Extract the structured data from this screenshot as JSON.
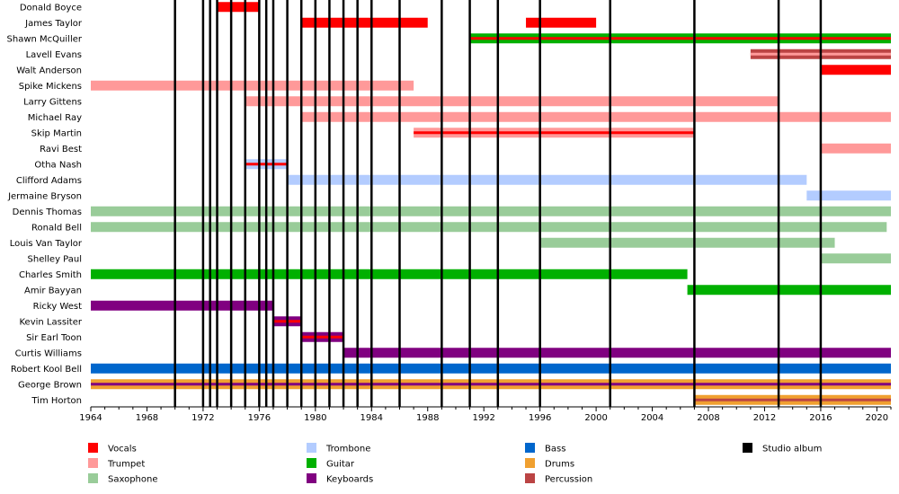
{
  "chart_data": {
    "type": "timeline",
    "title": "",
    "xlabel": "",
    "ylabel": "",
    "x_range": [
      1964,
      2021
    ],
    "x_ticks": [
      1964,
      1968,
      1972,
      1976,
      1980,
      1984,
      1988,
      1992,
      1996,
      2000,
      2004,
      2008,
      2012,
      2016,
      2020
    ],
    "albums": [
      1970,
      1972,
      1972.5,
      1973,
      1974,
      1975,
      1976,
      1976.5,
      1977,
      1978,
      1979,
      1980,
      1981,
      1982,
      1983,
      1984,
      1986,
      1989,
      1991,
      1993,
      1996,
      2001,
      2007,
      2013,
      2016
    ],
    "roles": {
      "vocals": {
        "label": "Vocals",
        "color": "#ff0000"
      },
      "trumpet": {
        "label": "Trumpet",
        "color": "#ff9999"
      },
      "saxophone": {
        "label": "Saxophone",
        "color": "#99cc99"
      },
      "trombone": {
        "label": "Trombone",
        "color": "#b3ccff"
      },
      "guitar": {
        "label": "Guitar",
        "color": "#00b000"
      },
      "keyboards": {
        "label": "Keyboards",
        "color": "#800080"
      },
      "bass": {
        "label": "Bass",
        "color": "#0066cc"
      },
      "drums": {
        "label": "Drums",
        "color": "#f0a030"
      },
      "percussion": {
        "label": "Percussion",
        "color": "#bb4444"
      },
      "album": {
        "label": "Studio album",
        "color": "#000000"
      }
    },
    "legend": [
      [
        "vocals",
        "trumpet",
        "saxophone"
      ],
      [
        "trombone",
        "guitar",
        "keyboards"
      ],
      [
        "bass",
        "drums",
        "percussion"
      ],
      [
        "album"
      ]
    ],
    "members": [
      {
        "name": "Donald Boyce",
        "bars": [
          {
            "role": "vocals",
            "start": 1973,
            "end": 1976
          }
        ]
      },
      {
        "name": "James Taylor",
        "bars": [
          {
            "role": "vocals",
            "start": 1979,
            "end": 1988
          },
          {
            "role": "vocals",
            "start": 1995,
            "end": 2000
          }
        ]
      },
      {
        "name": "Shawn McQuiller",
        "bars": [
          {
            "role": "guitar",
            "start": 1991,
            "end": 2021,
            "inner": "vocals"
          }
        ]
      },
      {
        "name": "Lavell Evans",
        "bars": [
          {
            "role": "percussion",
            "start": 2011,
            "end": 2021,
            "inner": "trumpet"
          }
        ]
      },
      {
        "name": "Walt Anderson",
        "bars": [
          {
            "role": "vocals",
            "start": 2016,
            "end": 2021
          }
        ]
      },
      {
        "name": "Spike Mickens",
        "bars": [
          {
            "role": "trumpet",
            "start": 1964,
            "end": 1987
          }
        ]
      },
      {
        "name": "Larry Gittens",
        "bars": [
          {
            "role": "trumpet",
            "start": 1975,
            "end": 2013
          }
        ]
      },
      {
        "name": "Michael Ray",
        "bars": [
          {
            "role": "trumpet",
            "start": 1979,
            "end": 2021
          }
        ]
      },
      {
        "name": "Skip Martin",
        "bars": [
          {
            "role": "trumpet",
            "start": 1987,
            "end": 2007,
            "inner": "vocals"
          }
        ]
      },
      {
        "name": "Ravi Best",
        "bars": [
          {
            "role": "trumpet",
            "start": 2016,
            "end": 2021
          }
        ]
      },
      {
        "name": "Otha Nash",
        "bars": [
          {
            "role": "trombone",
            "start": 1975,
            "end": 1978,
            "inner": "vocals"
          }
        ]
      },
      {
        "name": "Clifford Adams",
        "bars": [
          {
            "role": "trombone",
            "start": 1978,
            "end": 2015
          }
        ]
      },
      {
        "name": "Jermaine Bryson",
        "bars": [
          {
            "role": "trombone",
            "start": 2015,
            "end": 2021
          }
        ]
      },
      {
        "name": "Dennis Thomas",
        "bars": [
          {
            "role": "saxophone",
            "start": 1964,
            "end": 2021
          }
        ]
      },
      {
        "name": "Ronald Bell",
        "bars": [
          {
            "role": "saxophone",
            "start": 1964,
            "end": 2020.7
          }
        ]
      },
      {
        "name": "Louis Van Taylor",
        "bars": [
          {
            "role": "saxophone",
            "start": 1996,
            "end": 2017
          }
        ]
      },
      {
        "name": "Shelley Paul",
        "bars": [
          {
            "role": "saxophone",
            "start": 2016,
            "end": 2021
          }
        ]
      },
      {
        "name": "Charles Smith",
        "bars": [
          {
            "role": "guitar",
            "start": 1964,
            "end": 2006.5
          }
        ]
      },
      {
        "name": "Amir Bayyan",
        "bars": [
          {
            "role": "guitar",
            "start": 2006.5,
            "end": 2021
          }
        ]
      },
      {
        "name": "Ricky West",
        "bars": [
          {
            "role": "keyboards",
            "start": 1964,
            "end": 1977
          }
        ]
      },
      {
        "name": "Kevin Lassiter",
        "bars": [
          {
            "role": "keyboards",
            "start": 1977,
            "end": 1979,
            "inner": "vocals"
          }
        ]
      },
      {
        "name": "Sir Earl Toon",
        "bars": [
          {
            "role": "keyboards",
            "start": 1979,
            "end": 1982,
            "inner": "vocals"
          }
        ]
      },
      {
        "name": "Curtis Williams",
        "bars": [
          {
            "role": "keyboards",
            "start": 1982,
            "end": 2021
          }
        ]
      },
      {
        "name": "Robert Kool Bell",
        "bars": [
          {
            "role": "bass",
            "start": 1964,
            "end": 2021
          }
        ]
      },
      {
        "name": "George Brown",
        "bars": [
          {
            "role": "drums",
            "start": 1964,
            "end": 2021,
            "inner": "keyboards"
          }
        ]
      },
      {
        "name": "Tim Horton",
        "bars": [
          {
            "role": "drums",
            "start": 2007,
            "end": 2021,
            "inner": "percussion"
          }
        ]
      }
    ]
  }
}
